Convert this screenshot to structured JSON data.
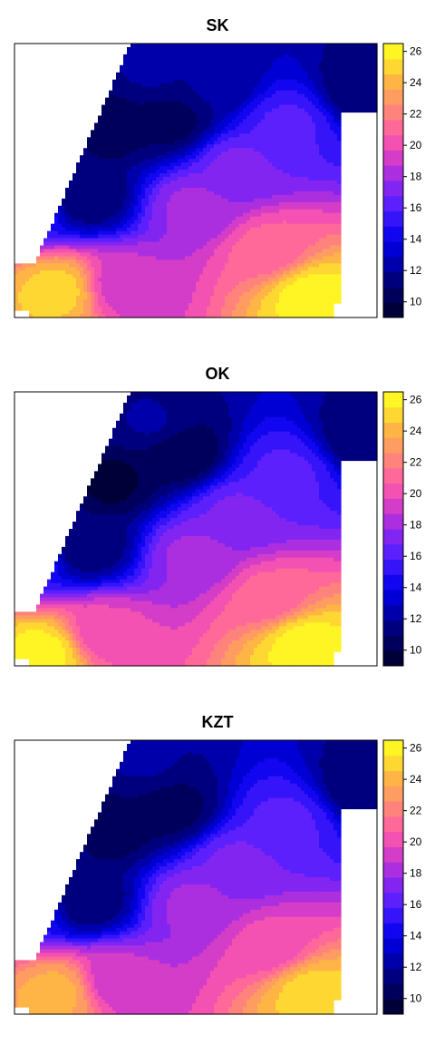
{
  "chart_data": [
    {
      "type": "heatmap",
      "title": "SK",
      "colorbar": {
        "min": 9,
        "max": 26.5,
        "ticks": [
          10,
          12,
          14,
          16,
          18,
          20,
          22,
          24,
          26
        ],
        "levels": 18,
        "palette": "blue-purple-pink-yellow"
      },
      "regions": [
        {
          "x": 0.25,
          "y": 0.7,
          "value": 10
        },
        {
          "x": 0.43,
          "y": 0.72,
          "value": 10.5
        },
        {
          "x": 0.2,
          "y": 0.44,
          "value": 11
        },
        {
          "x": 0.38,
          "y": 0.9,
          "value": 12
        },
        {
          "x": 0.97,
          "y": 0.83,
          "value": 11
        },
        {
          "x": 0.12,
          "y": 0.72,
          "value": 13
        },
        {
          "x": 0.55,
          "y": 0.85,
          "value": 12
        },
        {
          "x": 0.12,
          "y": 0.1,
          "value": 25
        },
        {
          "x": 0.3,
          "y": 0.12,
          "value": 19
        },
        {
          "x": 0.82,
          "y": 0.08,
          "value": 26
        },
        {
          "x": 0.7,
          "y": 0.25,
          "value": 21
        },
        {
          "x": 0.5,
          "y": 0.4,
          "value": 18
        },
        {
          "x": 0.62,
          "y": 0.55,
          "value": 17
        },
        {
          "x": 0.03,
          "y": 0.4,
          "value": 15
        },
        {
          "x": 0.75,
          "y": 0.7,
          "value": 16
        }
      ]
    },
    {
      "type": "heatmap",
      "title": "OK",
      "colorbar": {
        "min": 9,
        "max": 26.5,
        "ticks": [
          10,
          12,
          14,
          16,
          18,
          20,
          22,
          24,
          26
        ],
        "levels": 18,
        "palette": "blue-purple-pink-yellow"
      },
      "regions": [
        {
          "x": 0.25,
          "y": 0.68,
          "value": 9.5
        },
        {
          "x": 0.45,
          "y": 0.78,
          "value": 10
        },
        {
          "x": 0.2,
          "y": 0.44,
          "value": 11
        },
        {
          "x": 0.38,
          "y": 0.88,
          "value": 12
        },
        {
          "x": 0.97,
          "y": 0.83,
          "value": 11
        },
        {
          "x": 0.12,
          "y": 0.72,
          "value": 13
        },
        {
          "x": 0.08,
          "y": 0.05,
          "value": 26
        },
        {
          "x": 0.25,
          "y": 0.12,
          "value": 20
        },
        {
          "x": 0.8,
          "y": 0.08,
          "value": 26
        },
        {
          "x": 0.7,
          "y": 0.25,
          "value": 21
        },
        {
          "x": 0.5,
          "y": 0.4,
          "value": 18
        },
        {
          "x": 0.62,
          "y": 0.55,
          "value": 17
        },
        {
          "x": 0.03,
          "y": 0.4,
          "value": 15
        },
        {
          "x": 0.75,
          "y": 0.7,
          "value": 16
        }
      ]
    },
    {
      "type": "heatmap",
      "title": "KZT",
      "colorbar": {
        "min": 9,
        "max": 26.5,
        "ticks": [
          10,
          12,
          14,
          16,
          18,
          20,
          22,
          24,
          26
        ],
        "levels": 18,
        "palette": "blue-purple-pink-yellow"
      },
      "regions": [
        {
          "x": 0.25,
          "y": 0.68,
          "value": 10
        },
        {
          "x": 0.43,
          "y": 0.75,
          "value": 10.5
        },
        {
          "x": 0.2,
          "y": 0.42,
          "value": 11
        },
        {
          "x": 0.36,
          "y": 0.92,
          "value": 12
        },
        {
          "x": 0.97,
          "y": 0.83,
          "value": 11
        },
        {
          "x": 0.12,
          "y": 0.7,
          "value": 13
        },
        {
          "x": 0.12,
          "y": 0.08,
          "value": 24
        },
        {
          "x": 0.28,
          "y": 0.12,
          "value": 19
        },
        {
          "x": 0.82,
          "y": 0.08,
          "value": 25
        },
        {
          "x": 0.7,
          "y": 0.25,
          "value": 20
        },
        {
          "x": 0.5,
          "y": 0.4,
          "value": 18
        },
        {
          "x": 0.62,
          "y": 0.55,
          "value": 17
        },
        {
          "x": 0.03,
          "y": 0.4,
          "value": 15
        },
        {
          "x": 0.75,
          "y": 0.7,
          "value": 16
        }
      ]
    }
  ]
}
